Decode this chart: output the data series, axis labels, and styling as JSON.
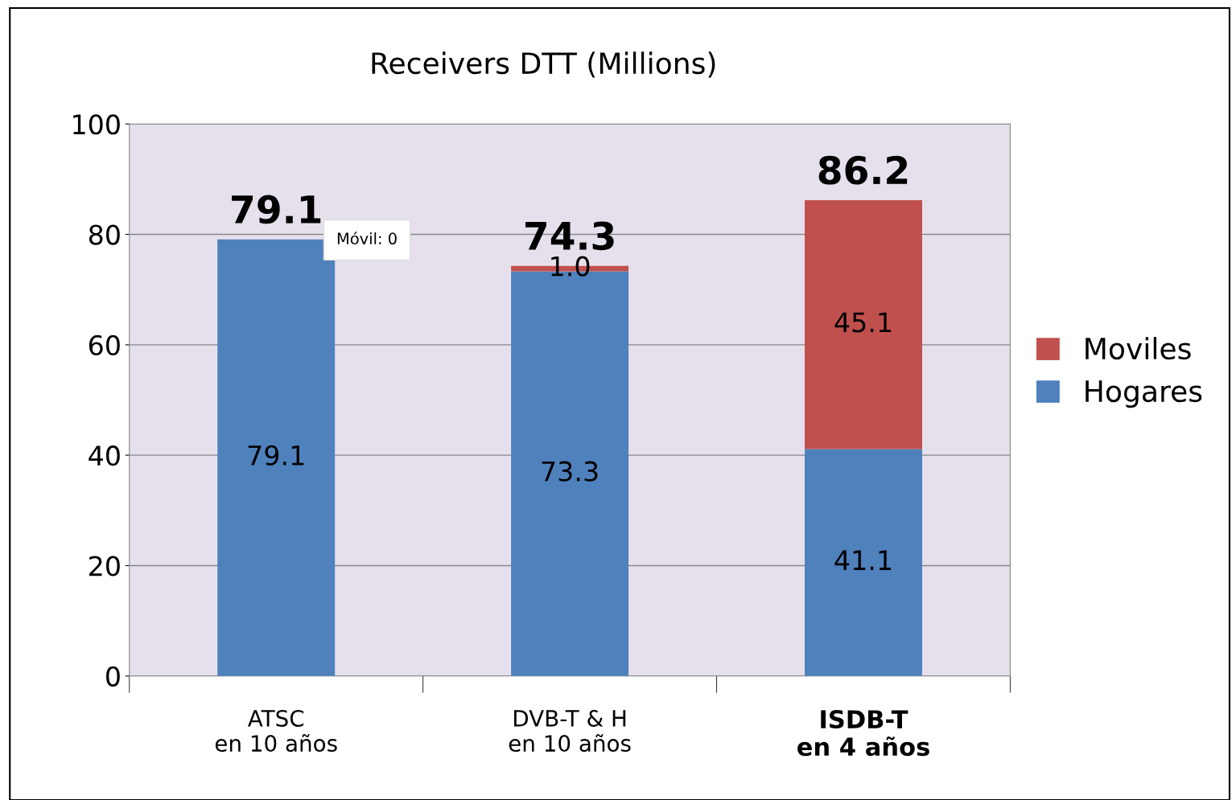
{
  "chart_data": {
    "type": "bar",
    "title": "Receivers DTT (Millions)",
    "categories": [
      "ATSC\nen 10 años",
      "DVB-T & H\nen 10 años",
      "ISDB-T\nen 4 años"
    ],
    "stacked": true,
    "series": [
      {
        "name": "Hogares",
        "color": "#4f81bd",
        "values": [
          79.1,
          73.3,
          41.1
        ],
        "value_labels": [
          "79.1",
          "73.3",
          "41.1"
        ]
      },
      {
        "name": "Moviles",
        "color": "#c0504d",
        "values": [
          0,
          1.0,
          45.1
        ],
        "value_labels": [
          null,
          "1.0",
          "45.1"
        ]
      }
    ],
    "totals": [
      "79.1",
      "74.3",
      "86.2"
    ],
    "annotations": [
      "Móvil: 0"
    ],
    "ylim": [
      0,
      100
    ],
    "yticks": [
      0,
      20,
      40,
      60,
      80,
      100
    ],
    "grid": "y",
    "legend": "right"
  }
}
